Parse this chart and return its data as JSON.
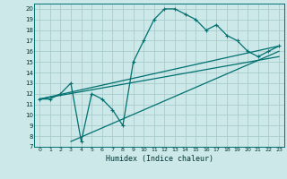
{
  "xlabel": "Humidex (Indice chaleur)",
  "background_color": "#cce8e8",
  "grid_color": "#aacccc",
  "line_color": "#007070",
  "xlim": [
    -0.5,
    23.5
  ],
  "ylim": [
    7,
    20.5
  ],
  "xticks": [
    0,
    1,
    2,
    3,
    4,
    5,
    6,
    7,
    8,
    9,
    10,
    11,
    12,
    13,
    14,
    15,
    16,
    17,
    18,
    19,
    20,
    21,
    22,
    23
  ],
  "yticks": [
    7,
    8,
    9,
    10,
    11,
    12,
    13,
    14,
    15,
    16,
    17,
    18,
    19,
    20
  ],
  "main_line": {
    "x": [
      0,
      1,
      2,
      3,
      4,
      5,
      6,
      7,
      8,
      9,
      10,
      11,
      12,
      13,
      14,
      15,
      16,
      17,
      18,
      19,
      20,
      21,
      22,
      23
    ],
    "y": [
      11.5,
      11.5,
      12.0,
      13.0,
      7.5,
      12.0,
      11.5,
      10.5,
      9.0,
      15.0,
      17.0,
      19.0,
      20.0,
      20.0,
      19.5,
      19.0,
      18.0,
      18.5,
      17.5,
      17.0,
      16.0,
      15.5,
      16.0,
      16.5
    ]
  },
  "regression_lines": [
    {
      "x": [
        0,
        23
      ],
      "y": [
        11.5,
        16.5
      ]
    },
    {
      "x": [
        0,
        23
      ],
      "y": [
        11.5,
        15.5
      ]
    },
    {
      "x": [
        3,
        23
      ],
      "y": [
        7.5,
        16.0
      ]
    }
  ]
}
